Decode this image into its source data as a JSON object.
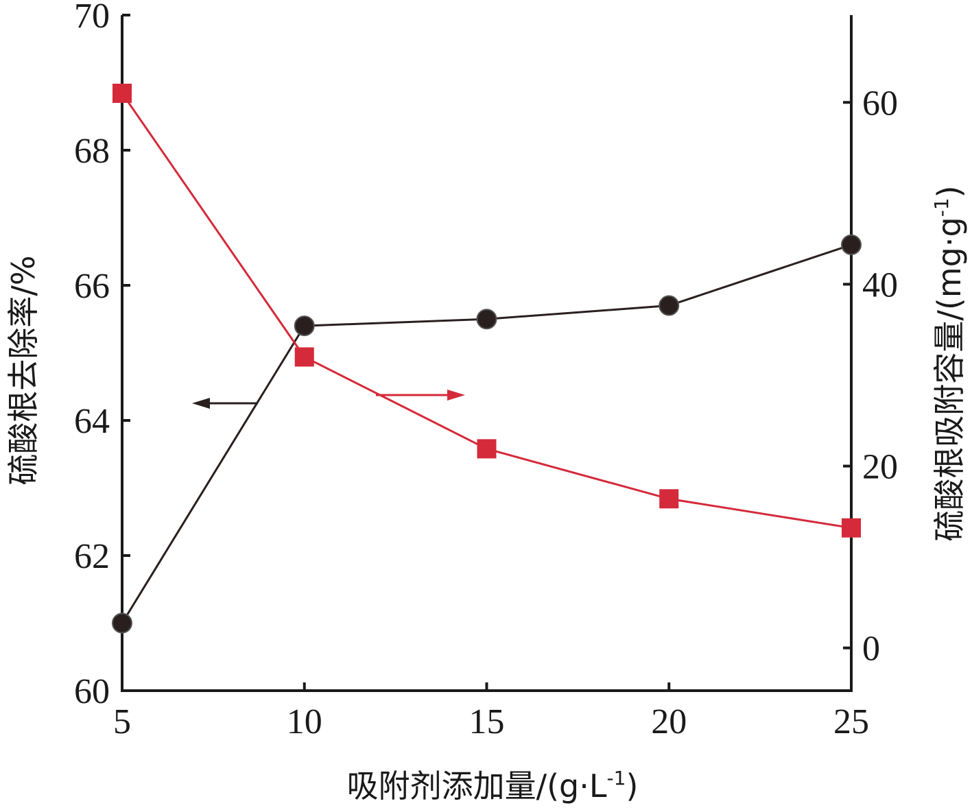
{
  "chart_data": {
    "type": "line",
    "xlabel": "吸附剂添加量/(g·L",
    "xlabel_sup": "-1",
    "xlabel_close": ")",
    "ylabel_left": "硫酸根去除率/%",
    "ylabel_right": "硫酸根吸附容量/(mg·g",
    "ylabel_right_sup": "-1",
    "ylabel_right_close": ")",
    "x": [
      5,
      10,
      15,
      20,
      25
    ],
    "x_ticks": [
      "5",
      "10",
      "15",
      "20",
      "25"
    ],
    "xlim": [
      5,
      25
    ],
    "y_left_ticks": [
      "60",
      "62",
      "64",
      "66",
      "68",
      "70"
    ],
    "y_left_lim": [
      60,
      70
    ],
    "y_right_ticks": [
      "0",
      "20",
      "40",
      "60"
    ],
    "y_right_lim": [
      -4.7,
      69.6
    ],
    "series": [
      {
        "axis": "left",
        "marker": "circle",
        "color": "#2a1f1f",
        "values": [
          61.0,
          65.4,
          65.5,
          65.7,
          66.6
        ]
      },
      {
        "axis": "right",
        "marker": "square",
        "color": "#d42a3a",
        "values": [
          61.0,
          32.0,
          21.9,
          16.4,
          13.2
        ]
      }
    ],
    "grid": false,
    "legend": "none",
    "annotations": [
      {
        "type": "arrow",
        "direction": "left",
        "series": 0
      },
      {
        "type": "arrow",
        "direction": "right",
        "series": 1
      }
    ]
  }
}
